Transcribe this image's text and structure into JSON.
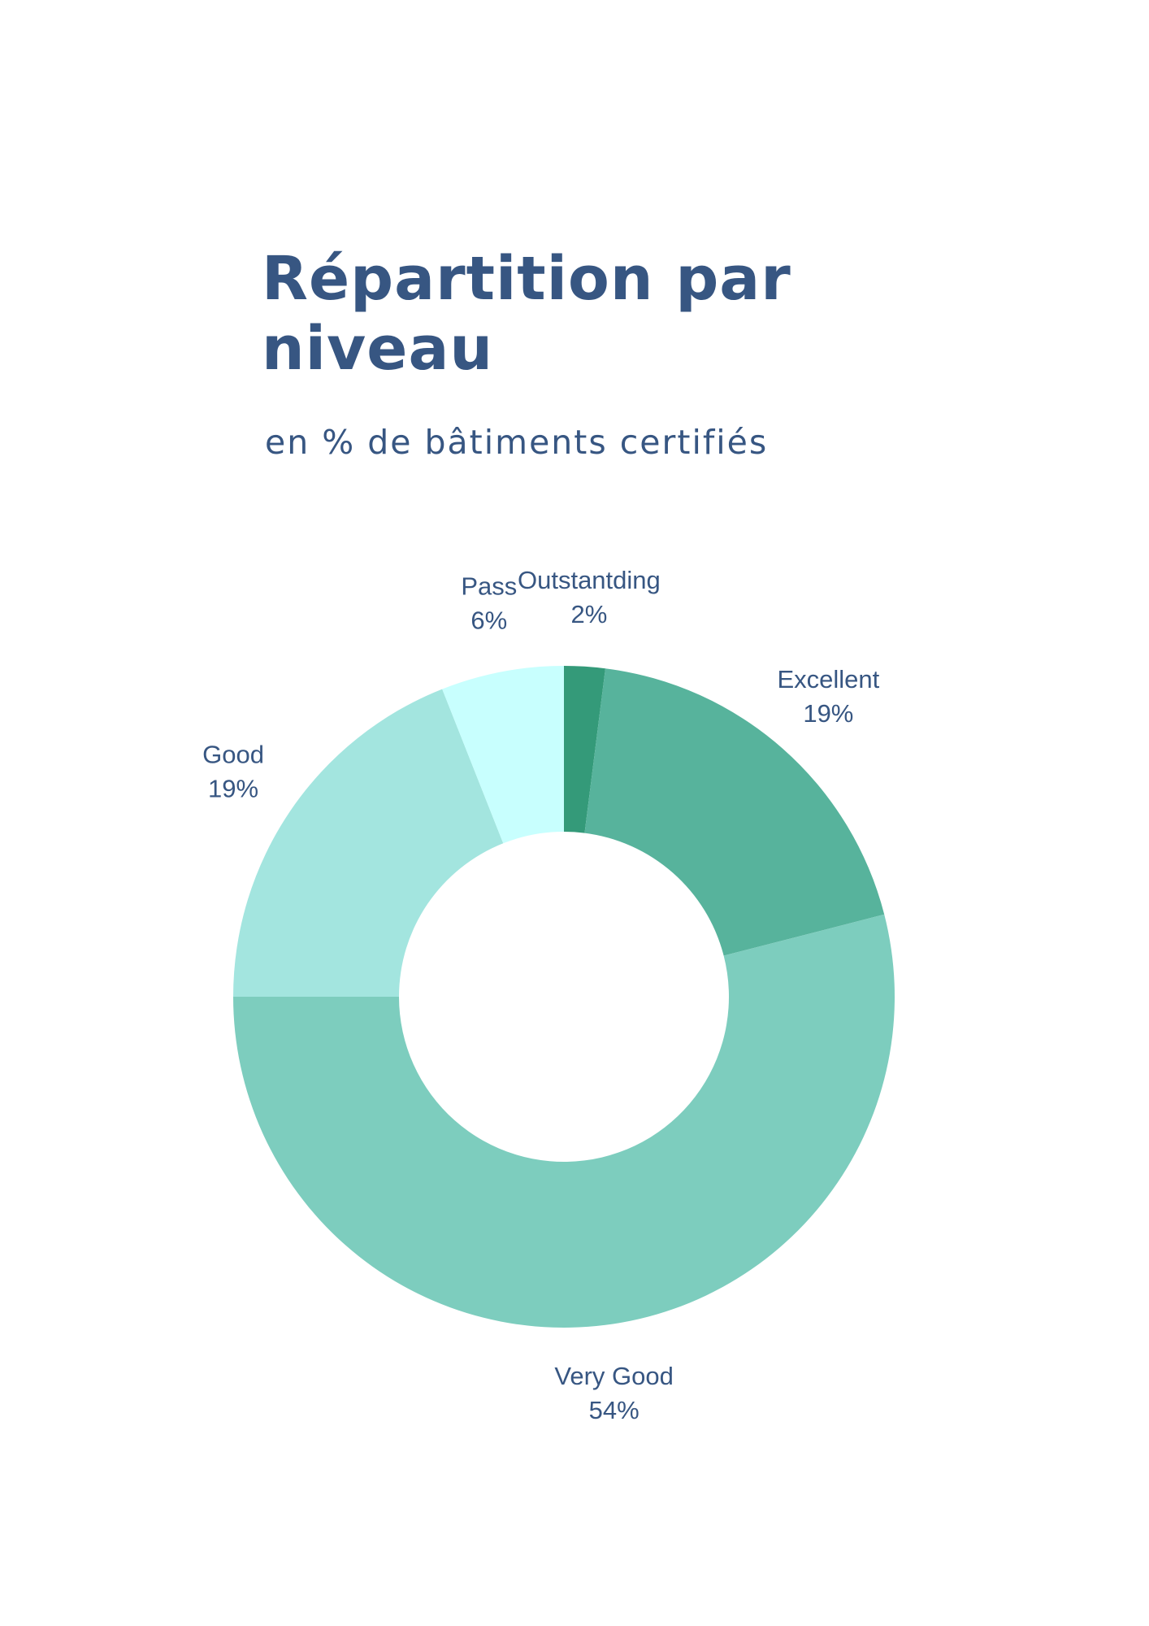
{
  "header": {
    "title": "Répartition par niveau",
    "subtitle": "en % de bâtiments certifiés"
  },
  "chart_data": {
    "type": "pie",
    "variant": "donut",
    "unit": "%",
    "categories": [
      "Outstantding",
      "Excellent",
      "Very Good",
      "Good",
      "Pass"
    ],
    "values": [
      2,
      19,
      54,
      19,
      6
    ],
    "value_labels": [
      "2%",
      "19%",
      "54%",
      "19%",
      "6%"
    ],
    "colors": [
      "#349a79",
      "#57b39c",
      "#7dcdbe",
      "#a3e5df",
      "#c8fffe"
    ],
    "start": "top",
    "direction": "clockwise",
    "legend": "none",
    "labels": "outside"
  }
}
